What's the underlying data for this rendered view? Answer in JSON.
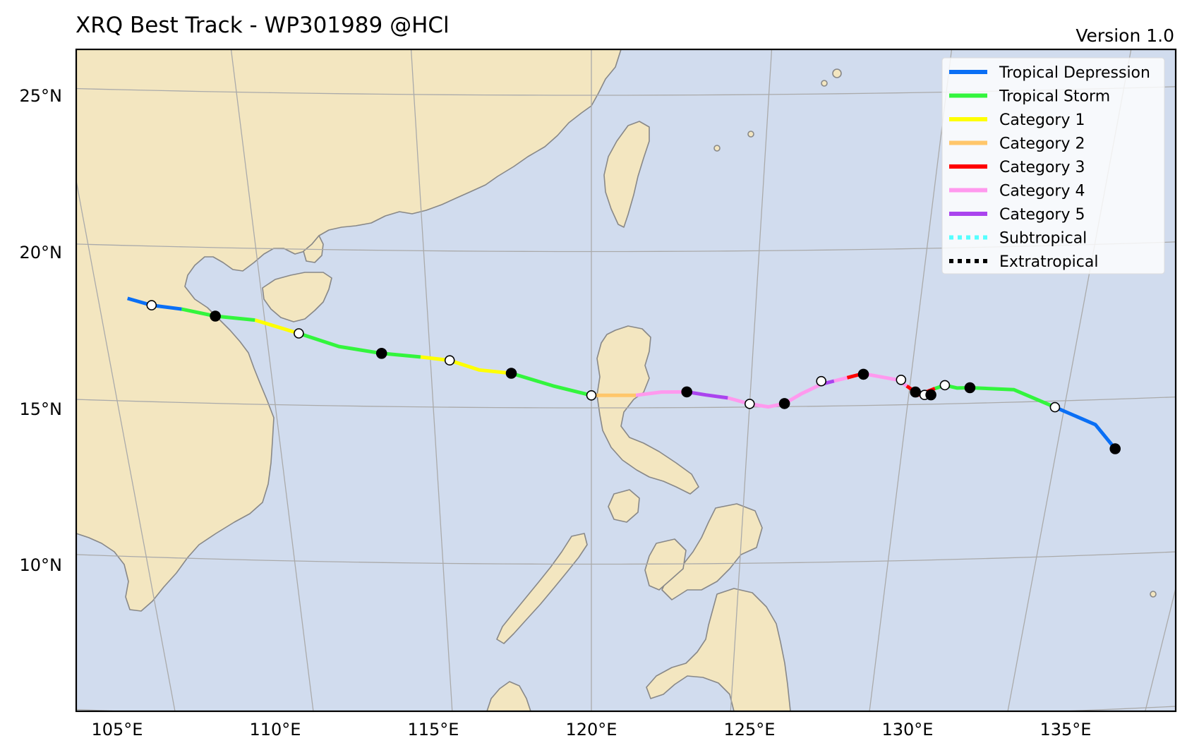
{
  "title": "XRQ Best Track - WP301989  @HCl",
  "version": "Version 1.0",
  "axes": {
    "lat_labels": [
      "25°N",
      "20°N",
      "15°N",
      "10°N"
    ],
    "lon_labels": [
      "105°E",
      "110°E",
      "115°E",
      "120°E",
      "125°E",
      "130°E",
      "135°E"
    ]
  },
  "colors": {
    "ocean": "#d1dcee",
    "land": "#f3e6c0",
    "coast": "#888888",
    "grid": "#aaaaaa"
  },
  "legend": [
    {
      "label": "Tropical Depression",
      "color": "#0a6ff5",
      "style": "solid"
    },
    {
      "label": "Tropical Storm",
      "color": "#33f53d",
      "style": "solid"
    },
    {
      "label": "Category 1",
      "color": "#ffff00",
      "style": "solid"
    },
    {
      "label": "Category 2",
      "color": "#ffc66a",
      "style": "solid"
    },
    {
      "label": "Category 3",
      "color": "#ff0000",
      "style": "solid"
    },
    {
      "label": "Category 4",
      "color": "#ff99ee",
      "style": "solid"
    },
    {
      "label": "Category 5",
      "color": "#aa44ee",
      "style": "solid"
    },
    {
      "label": "Subtropical",
      "color": "#55ffff",
      "style": "dotted"
    },
    {
      "label": "Extratropical",
      "color": "#000000",
      "style": "dotted"
    }
  ],
  "track": {
    "segments": [
      {
        "category": "Tropical Depression",
        "color": "#0a6ff5",
        "points": [
          [
            136.9,
            13.4
          ],
          [
            136.1,
            14.2
          ],
          [
            134.7,
            14.8
          ]
        ]
      },
      {
        "category": "Tropical Storm",
        "color": "#33f53d",
        "points": [
          [
            134.7,
            14.8
          ],
          [
            133.3,
            15.4
          ],
          [
            131.9,
            15.5
          ],
          [
            131.5,
            15.5
          ],
          [
            131.1,
            15.6
          ],
          [
            130.8,
            15.5
          ]
        ]
      },
      {
        "category": "Category 3",
        "color": "#ff0000",
        "points": [
          [
            130.8,
            15.5
          ],
          [
            130.3,
            15.3
          ],
          [
            130.2,
            15.4
          ],
          [
            130.5,
            15.3
          ],
          [
            130.7,
            15.3
          ],
          [
            130.2,
            15.4
          ],
          [
            129.9,
            15.6
          ]
        ]
      },
      {
        "category": "Category 4",
        "color": "#ff99ee",
        "points": [
          [
            129.9,
            15.6
          ],
          [
            129.6,
            15.8
          ],
          [
            129.1,
            15.9
          ],
          [
            128.6,
            16.0
          ]
        ]
      },
      {
        "category": "Category 3",
        "color": "#ff0000",
        "points": [
          [
            128.6,
            16.0
          ],
          [
            128.4,
            16.0
          ],
          [
            128.0,
            15.9
          ]
        ]
      },
      {
        "category": "Category 4",
        "color": "#ff99ee",
        "points": [
          [
            128.0,
            15.9
          ],
          [
            127.6,
            15.8
          ]
        ]
      },
      {
        "category": "Category 5",
        "color": "#aa44ee",
        "points": [
          [
            127.6,
            15.8
          ],
          [
            127.2,
            15.7
          ]
        ]
      },
      {
        "category": "Category 4",
        "color": "#ff99ee",
        "points": [
          [
            127.2,
            15.7
          ],
          [
            126.6,
            15.4
          ],
          [
            126.1,
            15.1
          ],
          [
            125.6,
            15.0
          ],
          [
            125.0,
            15.1
          ],
          [
            124.3,
            15.3
          ]
        ]
      },
      {
        "category": "Category 5",
        "color": "#aa44ee",
        "points": [
          [
            124.3,
            15.3
          ],
          [
            123.6,
            15.4
          ],
          [
            123.0,
            15.5
          ]
        ]
      },
      {
        "category": "Category 4",
        "color": "#ff99ee",
        "points": [
          [
            123.0,
            15.5
          ],
          [
            122.2,
            15.5
          ],
          [
            121.4,
            15.4
          ]
        ]
      },
      {
        "category": "Category 2",
        "color": "#ffc66a",
        "points": [
          [
            121.4,
            15.4
          ],
          [
            120.7,
            15.4
          ],
          [
            120.0,
            15.4
          ]
        ]
      },
      {
        "category": "Tropical Storm",
        "color": "#33f53d",
        "points": [
          [
            120.0,
            15.4
          ],
          [
            118.8,
            15.7
          ],
          [
            117.5,
            16.1
          ]
        ]
      },
      {
        "category": "Category 1",
        "color": "#ffff00",
        "points": [
          [
            117.5,
            16.1
          ],
          [
            116.5,
            16.2
          ],
          [
            115.6,
            16.5
          ],
          [
            114.7,
            16.6
          ]
        ]
      },
      {
        "category": "Tropical Storm",
        "color": "#33f53d",
        "points": [
          [
            114.7,
            16.6
          ],
          [
            113.5,
            16.7
          ],
          [
            112.2,
            16.9
          ],
          [
            111.0,
            17.3
          ]
        ]
      },
      {
        "category": "Category 1",
        "color": "#ffff00",
        "points": [
          [
            111.0,
            17.3
          ],
          [
            109.7,
            17.7
          ]
        ]
      },
      {
        "category": "Tropical Storm",
        "color": "#33f53d",
        "points": [
          [
            109.7,
            17.7
          ],
          [
            108.5,
            17.8
          ],
          [
            107.5,
            18.0
          ]
        ]
      },
      {
        "category": "Tropical Depression",
        "color": "#0a6ff5",
        "points": [
          [
            107.5,
            18.0
          ],
          [
            106.6,
            18.1
          ],
          [
            105.9,
            18.3
          ]
        ]
      }
    ],
    "markers_00z": [
      [
        136.9,
        13.4
      ],
      [
        131.9,
        15.5
      ],
      [
        130.7,
        15.3
      ],
      [
        130.2,
        15.4
      ],
      [
        128.5,
        16.0
      ],
      [
        126.1,
        15.1
      ],
      [
        123.0,
        15.5
      ],
      [
        117.5,
        16.1
      ],
      [
        113.5,
        16.7
      ],
      [
        108.5,
        17.8
      ]
    ],
    "markers_12z": [
      [
        134.7,
        14.8
      ],
      [
        131.1,
        15.6
      ],
      [
        130.5,
        15.3
      ],
      [
        129.7,
        15.8
      ],
      [
        127.2,
        15.8
      ],
      [
        125.0,
        15.1
      ],
      [
        120.0,
        15.4
      ],
      [
        115.6,
        16.5
      ],
      [
        111.0,
        17.3
      ],
      [
        106.6,
        18.1
      ]
    ]
  }
}
